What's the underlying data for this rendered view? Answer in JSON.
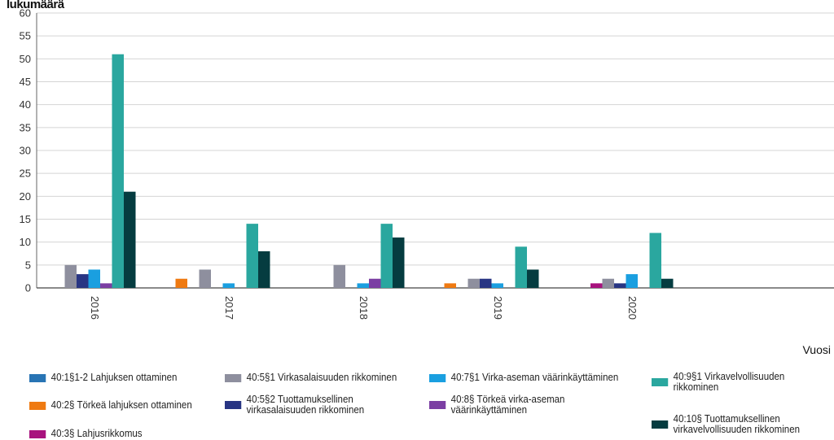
{
  "chart_data": {
    "type": "bar",
    "title": "",
    "ylabel": "lukumäärä",
    "xlabel": "Vuosi",
    "ylim": [
      0,
      60
    ],
    "yticks": [
      0,
      5,
      10,
      15,
      20,
      25,
      30,
      35,
      40,
      45,
      50,
      55,
      60
    ],
    "categories": [
      "2016",
      "2017",
      "2018",
      "2019",
      "2020"
    ],
    "grid": true,
    "legend_position": "bottom",
    "series": [
      {
        "name": "40:1§1-2 Lahjuksen ottaminen",
        "color": "#2874b4",
        "values": [
          0,
          0,
          0,
          0,
          0
        ]
      },
      {
        "name": "40:2§ Törkeä lahjuksen ottaminen",
        "color": "#ef7a11",
        "values": [
          0,
          2,
          0,
          1,
          0
        ]
      },
      {
        "name": "40:3§ Lahjusrikkomus",
        "color": "#a8127e",
        "values": [
          0,
          0,
          0,
          0,
          1
        ]
      },
      {
        "name": "40:5§1 Virkasalaisuuden rikkominen",
        "color": "#8e8f9e",
        "values": [
          5,
          4,
          5,
          2,
          2
        ]
      },
      {
        "name": "40:5§2 Tuottamuksellinen virkasalaisuuden rikkominen",
        "color": "#283583",
        "values": [
          3,
          0,
          0,
          2,
          1
        ]
      },
      {
        "name": "40:7§1 Virka-aseman väärinkäyttäminen",
        "color": "#1a9fe0",
        "values": [
          4,
          1,
          1,
          1,
          3
        ]
      },
      {
        "name": "40:8§ Törkeä virka-aseman väärinkäyttäminen",
        "color": "#7b3ea3",
        "values": [
          1,
          0,
          2,
          0,
          0
        ]
      },
      {
        "name": "40:9§1 Virkavelvollisuuden rikkominen",
        "color": "#2aa79f",
        "values": [
          51,
          14,
          14,
          9,
          12
        ]
      },
      {
        "name": "40:10§ Tuottamuksellinen virkavelvollisuuden rikkominen",
        "color": "#053c40",
        "values": [
          21,
          8,
          11,
          4,
          2
        ]
      }
    ]
  }
}
